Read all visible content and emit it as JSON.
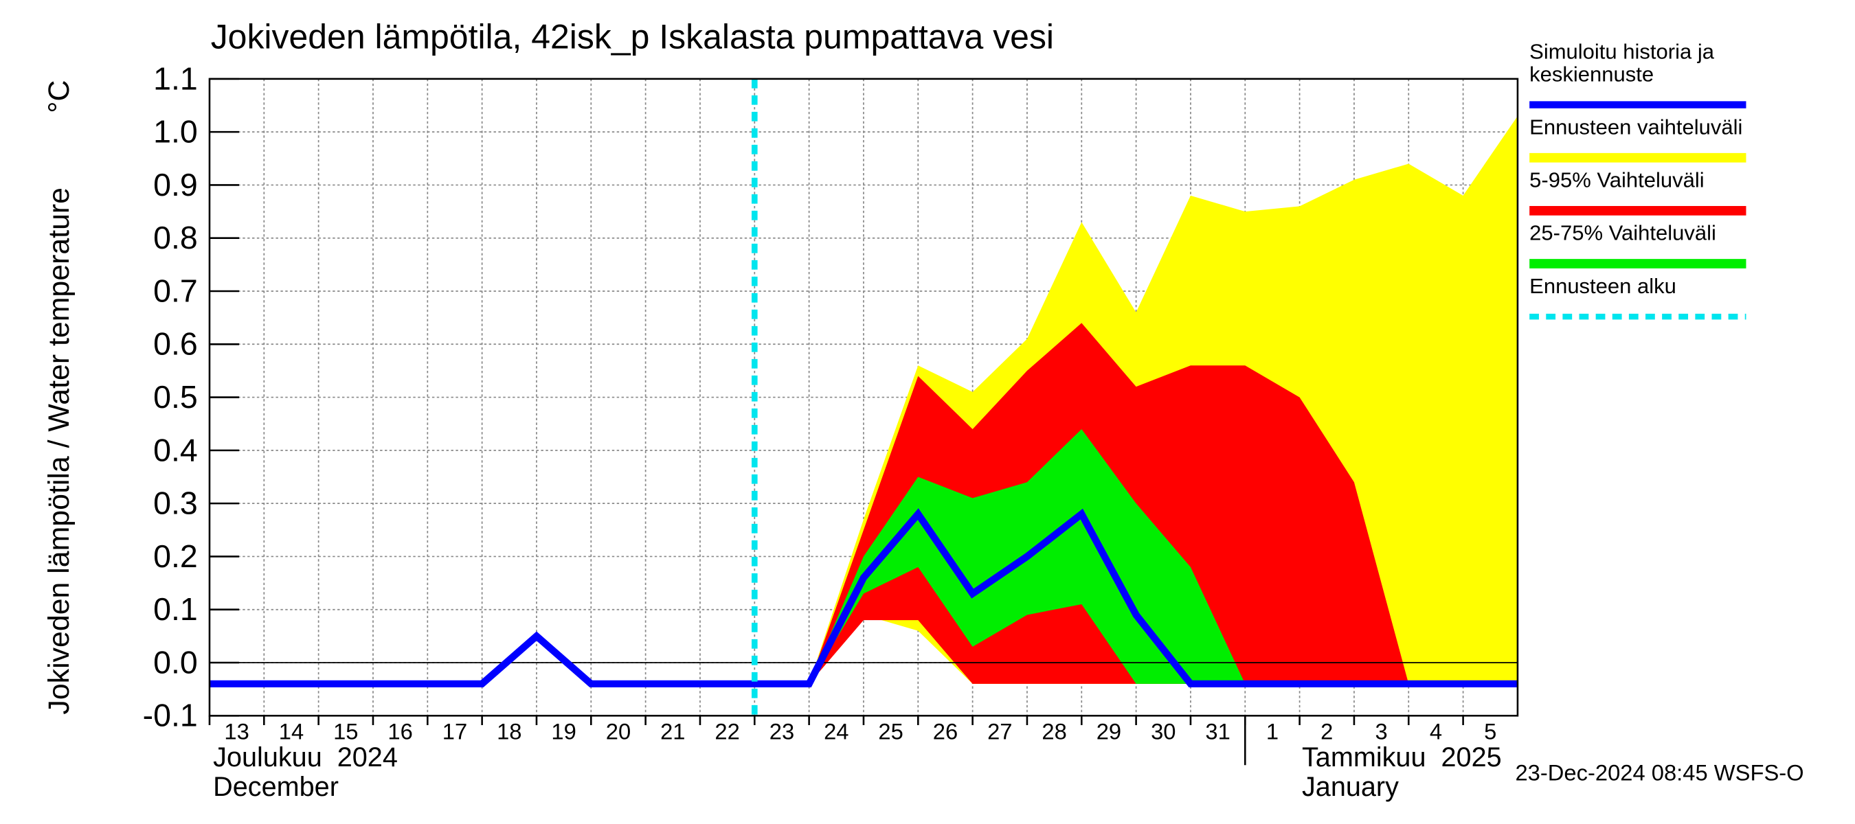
{
  "chart_data": {
    "type": "line",
    "title": "Jokiveden lämpötila, 42isk_p Iskalasta pumpattava vesi",
    "y_label": "Jokiveden lämpötila / Water temperature",
    "y_unit": "°C",
    "x": [
      "2024-12-13",
      "2024-12-14",
      "2024-12-15",
      "2024-12-16",
      "2024-12-17",
      "2024-12-18",
      "2024-12-19",
      "2024-12-20",
      "2024-12-21",
      "2024-12-22",
      "2024-12-23",
      "2024-12-24",
      "2024-12-25",
      "2024-12-26",
      "2024-12-27",
      "2024-12-28",
      "2024-12-29",
      "2024-12-30",
      "2024-12-31",
      "2025-01-01",
      "2025-01-02",
      "2025-01-03",
      "2025-01-04",
      "2025-01-05",
      "2025-01-06"
    ],
    "day_labels": [
      "13",
      "14",
      "15",
      "16",
      "17",
      "18",
      "19",
      "20",
      "21",
      "22",
      "23",
      "24",
      "25",
      "26",
      "27",
      "28",
      "29",
      "30",
      "31",
      "1",
      "2",
      "3",
      "4",
      "5"
    ],
    "month_labels": [
      {
        "x": "2024-12-13",
        "fi": "Joulukuu  2024",
        "en": "December"
      },
      {
        "x": "2025-01-01",
        "fi": "Tammikuu  2025",
        "en": "January"
      }
    ],
    "ylim": [
      -0.1,
      1.1
    ],
    "yticks": [
      -0.1,
      {
        "value": 0,
        "label": "0.0"
      },
      0.1,
      0.2,
      0.3,
      0.4,
      0.5,
      0.6,
      0.7,
      0.8,
      0.9,
      {
        "value": 1,
        "label": "1.0"
      },
      1.1
    ],
    "grid": true,
    "bands": [
      {
        "name": "Ennusteen vaihteluväli",
        "color": "#ffff00",
        "upper": [
          null,
          null,
          null,
          null,
          null,
          null,
          null,
          null,
          null,
          null,
          null,
          -0.04,
          0.27,
          0.56,
          0.51,
          0.61,
          0.83,
          0.66,
          0.88,
          0.85,
          0.86,
          0.91,
          0.94,
          0.88,
          1.03
        ],
        "lower": [
          null,
          null,
          null,
          null,
          null,
          null,
          null,
          null,
          null,
          null,
          null,
          -0.04,
          0.09,
          0.06,
          -0.04,
          -0.04,
          -0.04,
          -0.04,
          -0.04,
          -0.04,
          -0.04,
          -0.04,
          -0.04,
          -0.04,
          -0.04
        ]
      },
      {
        "name": "5-95% Vaihteluväli",
        "color": "#ff0000",
        "upper": [
          null,
          null,
          null,
          null,
          null,
          null,
          null,
          null,
          null,
          null,
          null,
          -0.04,
          0.25,
          0.54,
          0.44,
          0.55,
          0.64,
          0.52,
          0.56,
          0.56,
          0.5,
          0.34,
          -0.04,
          -0.04,
          -0.04
        ],
        "lower": [
          null,
          null,
          null,
          null,
          null,
          null,
          null,
          null,
          null,
          null,
          null,
          -0.04,
          0.08,
          0.08,
          -0.04,
          -0.04,
          -0.04,
          -0.04,
          -0.04,
          -0.04,
          -0.04,
          -0.04,
          -0.04,
          -0.04,
          -0.04
        ]
      },
      {
        "name": "25-75% Vaihteluväli",
        "color": "#00ee00",
        "upper": [
          null,
          null,
          null,
          null,
          null,
          null,
          null,
          null,
          null,
          null,
          null,
          -0.04,
          0.2,
          0.35,
          0.31,
          0.34,
          0.44,
          0.3,
          0.18,
          -0.04,
          -0.04,
          -0.04,
          -0.04,
          -0.04,
          -0.04
        ],
        "lower": [
          null,
          null,
          null,
          null,
          null,
          null,
          null,
          null,
          null,
          null,
          null,
          -0.04,
          0.13,
          0.18,
          0.03,
          0.09,
          0.11,
          -0.04,
          -0.04,
          -0.04,
          -0.04,
          -0.04,
          -0.04,
          -0.04,
          -0.04
        ]
      }
    ],
    "series": [
      {
        "name": "Simuloitu historia ja keskiennuste",
        "color": "#0000ff",
        "values": [
          -0.04,
          -0.04,
          -0.04,
          -0.04,
          -0.04,
          -0.04,
          0.05,
          -0.04,
          -0.04,
          -0.04,
          -0.04,
          -0.04,
          0.16,
          0.28,
          0.13,
          0.2,
          0.28,
          0.09,
          -0.04,
          -0.04,
          -0.04,
          -0.04,
          -0.04,
          -0.04,
          -0.04
        ]
      }
    ],
    "forecast_start": {
      "name": "Ennusteen alku",
      "color": "#00e5ee",
      "x": "2024-12-23"
    },
    "footer": "23-Dec-2024 08:45 WSFS-O"
  }
}
